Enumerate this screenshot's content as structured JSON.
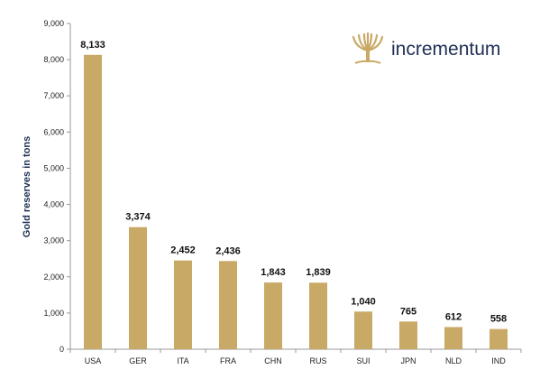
{
  "chart_data": {
    "type": "bar",
    "title": "",
    "xlabel": "",
    "ylabel": "Gold reserves in tons",
    "categories": [
      "USA",
      "GER",
      "ITA",
      "FRA",
      "CHN",
      "RUS",
      "SUI",
      "JPN",
      "NLD",
      "IND"
    ],
    "values": [
      8133,
      3374,
      2452,
      2436,
      1843,
      1839,
      1040,
      765,
      612,
      558
    ],
    "data_labels": [
      "8,133",
      "3,374",
      "2,452",
      "2,436",
      "1,843",
      "1,839",
      "1,040",
      "765",
      "612",
      "558"
    ],
    "ylim": [
      0,
      9000
    ],
    "yticks": [
      0,
      1000,
      2000,
      3000,
      4000,
      5000,
      6000,
      7000,
      8000,
      9000
    ],
    "ytick_labels": [
      "0",
      "1,000",
      "2,000",
      "3,000",
      "4,000",
      "5,000",
      "6,000",
      "7,000",
      "8,000",
      "9,000"
    ],
    "grid": false,
    "bar_color": "#c9a966"
  },
  "logo": {
    "text": "incrementum",
    "icon": "tree-logo-icon",
    "icon_color": "#c9a966",
    "text_color": "#1f2f55"
  }
}
